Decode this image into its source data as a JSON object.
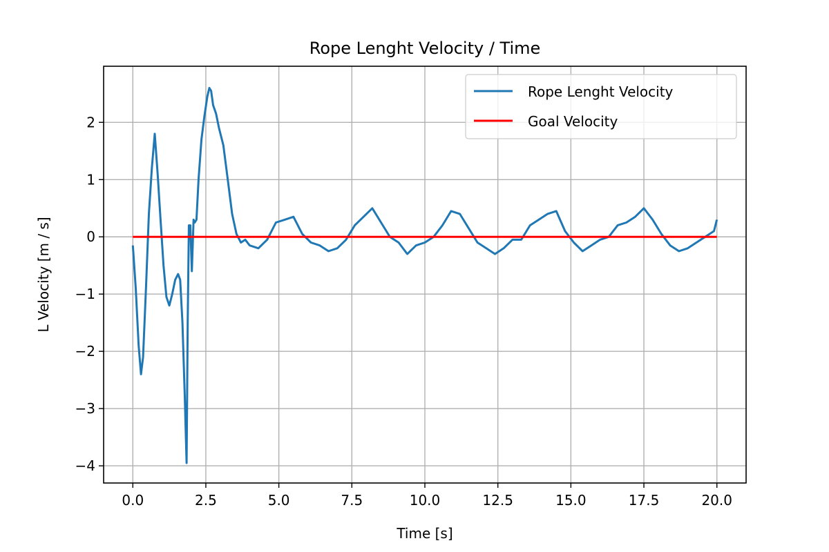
{
  "chart_data": {
    "type": "line",
    "title": "Rope Lenght Velocity / Time",
    "xlabel": "Time [s]",
    "ylabel": "L Velocity [m / s]",
    "xlim": [
      -1.0,
      21.0
    ],
    "ylim": [
      -4.3,
      2.98
    ],
    "xticks": [
      0,
      2.5,
      5,
      7.5,
      10,
      12.5,
      15,
      17.5,
      20
    ],
    "xtick_labels": [
      "0.0",
      "2.5",
      "5.0",
      "7.5",
      "10.0",
      "12.5",
      "15.0",
      "17.5",
      "20.0"
    ],
    "yticks": [
      -4,
      -3,
      -2,
      -1,
      0,
      1,
      2
    ],
    "ytick_labels": [
      "−4",
      "−3",
      "−2",
      "−1",
      "0",
      "1",
      "2"
    ],
    "grid": true,
    "legend_position": "top-right",
    "series": [
      {
        "name": "Rope Lenght Velocity",
        "color": "#1f77b4",
        "x": [
          0.0,
          0.1,
          0.2,
          0.28,
          0.35,
          0.45,
          0.55,
          0.65,
          0.75,
          0.85,
          0.95,
          1.05,
          1.15,
          1.25,
          1.35,
          1.45,
          1.55,
          1.62,
          1.7,
          1.78,
          1.84,
          1.88,
          1.92,
          1.97,
          2.02,
          2.08,
          2.12,
          2.18,
          2.25,
          2.35,
          2.45,
          2.55,
          2.62,
          2.68,
          2.75,
          2.85,
          2.95,
          3.1,
          3.25,
          3.4,
          3.55,
          3.7,
          3.85,
          4.0,
          4.3,
          4.6,
          4.9,
          5.2,
          5.5,
          5.8,
          6.1,
          6.4,
          6.7,
          7.0,
          7.3,
          7.6,
          7.9,
          8.2,
          8.5,
          8.8,
          9.1,
          9.4,
          9.7,
          10.0,
          10.3,
          10.6,
          10.9,
          11.2,
          11.5,
          11.8,
          12.1,
          12.4,
          12.7,
          13.0,
          13.3,
          13.6,
          13.9,
          14.2,
          14.5,
          14.8,
          15.1,
          15.4,
          15.7,
          16.0,
          16.3,
          16.6,
          16.9,
          17.2,
          17.5,
          17.8,
          18.1,
          18.4,
          18.7,
          19.0,
          19.3,
          19.6,
          19.9,
          20.0
        ],
        "y": [
          -0.15,
          -0.9,
          -1.9,
          -2.4,
          -2.1,
          -0.9,
          0.4,
          1.2,
          1.8,
          1.1,
          0.3,
          -0.5,
          -1.05,
          -1.2,
          -1.0,
          -0.75,
          -0.65,
          -0.75,
          -1.5,
          -2.8,
          -3.95,
          -1.5,
          0.2,
          0.2,
          -0.6,
          0.3,
          0.25,
          0.3,
          1.0,
          1.7,
          2.1,
          2.45,
          2.6,
          2.55,
          2.3,
          2.15,
          1.9,
          1.6,
          1.0,
          0.4,
          0.05,
          -0.1,
          -0.05,
          -0.15,
          -0.2,
          -0.05,
          0.25,
          0.3,
          0.35,
          0.05,
          -0.1,
          -0.15,
          -0.25,
          -0.2,
          -0.05,
          0.2,
          0.35,
          0.5,
          0.25,
          0.0,
          -0.1,
          -0.3,
          -0.15,
          -0.1,
          0.0,
          0.2,
          0.45,
          0.4,
          0.15,
          -0.1,
          -0.2,
          -0.3,
          -0.2,
          -0.05,
          -0.05,
          0.2,
          0.3,
          0.4,
          0.45,
          0.1,
          -0.1,
          -0.25,
          -0.15,
          -0.05,
          0.0,
          0.2,
          0.25,
          0.35,
          0.5,
          0.3,
          0.05,
          -0.15,
          -0.25,
          -0.2,
          -0.1,
          0.0,
          0.1,
          0.3
        ]
      },
      {
        "name": "Goal Velocity",
        "color": "#ff0000",
        "x": [
          0.0,
          20.0
        ],
        "y": [
          0.0,
          0.0
        ]
      }
    ]
  }
}
